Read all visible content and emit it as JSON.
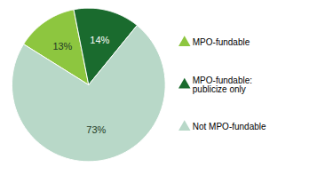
{
  "chart_data": {
    "type": "pie",
    "categories": [
      "MPO-fundable",
      "MPO-fundable:\npublicize only",
      "Not MPO-fundable"
    ],
    "values": [
      13,
      14,
      73
    ],
    "value_labels": [
      "13%",
      "14%",
      "73%"
    ],
    "colors": [
      "#8dc63f",
      "#1a6b2e",
      "#b8d8c8"
    ],
    "data_labels": true,
    "legend": "right"
  }
}
